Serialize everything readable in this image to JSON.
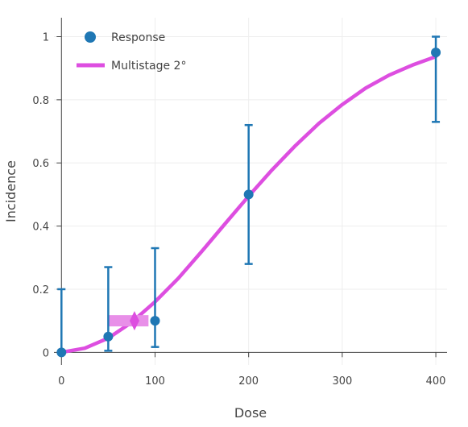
{
  "chart_data": {
    "type": "scatter",
    "xlabel": "Dose",
    "ylabel": "Incidence",
    "xlim": [
      -8,
      412
    ],
    "ylim": [
      -0.04,
      1.06
    ],
    "grid": true,
    "legend_position": "top-left",
    "x_ticks": [
      0,
      100,
      200,
      300,
      400
    ],
    "y_ticks": [
      0,
      0.2,
      0.4,
      0.6,
      0.8,
      1
    ],
    "x_tick_labels": [
      "0",
      "100",
      "200",
      "300",
      "400"
    ],
    "y_tick_labels": [
      "0",
      "0.2",
      "0.4",
      "0.6",
      "0.8",
      "1"
    ],
    "series": [
      {
        "name": "Response",
        "kind": "markers",
        "color": "#1f77b4",
        "points": [
          {
            "x": 0,
            "y": 0,
            "lower": 0,
            "upper": 0.2
          },
          {
            "x": 50,
            "y": 0.05,
            "lower": 0.005,
            "upper": 0.27
          },
          {
            "x": 100,
            "y": 0.1,
            "lower": 0.017,
            "upper": 0.33
          },
          {
            "x": 200,
            "y": 0.5,
            "lower": 0.28,
            "upper": 0.72
          },
          {
            "x": 400,
            "y": 0.95,
            "lower": 0.73,
            "upper": 1.0
          }
        ]
      },
      {
        "name": "Multistage 2°",
        "kind": "line",
        "color": "#dd4ee0",
        "x": [
          0,
          25,
          50,
          75,
          100,
          125,
          150,
          175,
          200,
          225,
          250,
          275,
          300,
          325,
          350,
          375,
          400
        ],
        "y": [
          0,
          0.013,
          0.045,
          0.095,
          0.16,
          0.235,
          0.32,
          0.408,
          0.495,
          0.578,
          0.655,
          0.725,
          0.785,
          0.837,
          0.878,
          0.91,
          0.937
        ]
      }
    ],
    "bmd": {
      "x": 78,
      "y": 0.1,
      "bmdl": 50,
      "bmdu": 93,
      "color": "#dd4ee0",
      "interval_color": "#e88fe8"
    }
  }
}
